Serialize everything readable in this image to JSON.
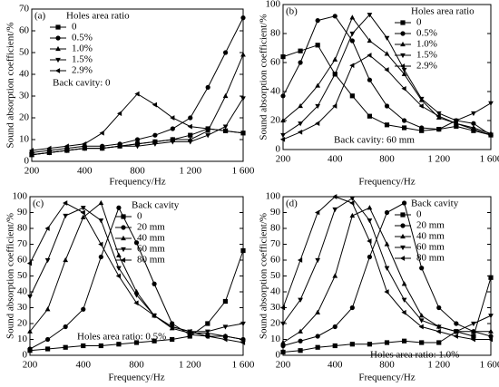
{
  "chart_data": [
    {
      "type": "line",
      "label": "(a)",
      "ylabel": "Sound absorption coefficient/%",
      "xlabel": "Frequency/Hz",
      "categories": [
        "200",
        null,
        null,
        "400",
        null,
        null,
        "800",
        null,
        null,
        "1 200",
        null,
        null,
        "1 600"
      ],
      "ylim": [
        0,
        70
      ],
      "yticks": [
        0,
        10,
        20,
        30,
        40,
        50,
        60,
        70
      ],
      "legend": "upper left",
      "legend_title": "Holes area ratio",
      "annotation": "Back cavity: 0",
      "series": [
        {
          "name": "0",
          "color": "#000000",
          "marker": "square",
          "values": [
            3,
            4,
            5,
            6,
            6,
            7,
            8,
            9,
            10,
            12,
            15,
            14,
            13
          ]
        },
        {
          "name": "0.5%",
          "color": "#000000",
          "marker": "circle",
          "values": [
            4,
            5,
            6,
            7,
            7,
            8,
            10,
            12,
            15,
            20,
            34,
            50,
            66
          ]
        },
        {
          "name": "1.0%",
          "color": "#000000",
          "marker": "triangle-up",
          "values": [
            3,
            4,
            5,
            6,
            6,
            7,
            8,
            9,
            10,
            10,
            14,
            30,
            49
          ]
        },
        {
          "name": "1.5%",
          "color": "#000000",
          "marker": "triangle-down",
          "values": [
            3,
            4,
            5,
            6,
            6,
            7,
            7,
            8,
            9,
            9,
            12,
            16,
            29
          ]
        },
        {
          "name": "2.9%",
          "color": "#000000",
          "marker": "triangle-left",
          "values": [
            5,
            6,
            7,
            8,
            13,
            22,
            31,
            26,
            20,
            16,
            15,
            14,
            13
          ]
        }
      ]
    },
    {
      "type": "line",
      "label": "(b)",
      "ylabel": "Sound absorption coefficient/%",
      "xlabel": "Frequency/Hz",
      "categories": [
        "200",
        null,
        null,
        "400",
        null,
        null,
        "800",
        null,
        null,
        "1 200",
        null,
        null,
        "1 600"
      ],
      "ylim": [
        0,
        100
      ],
      "yticks": [
        0,
        20,
        40,
        60,
        80,
        100
      ],
      "legend": "upper right",
      "legend_title": "Holes area ratio",
      "annotation": "Back cavity: 60 mm",
      "series": [
        {
          "name": "0",
          "color": "#000000",
          "marker": "square",
          "values": [
            64,
            68,
            72,
            52,
            37,
            23,
            17,
            15,
            13,
            14,
            16,
            13,
            10
          ]
        },
        {
          "name": "0.5%",
          "color": "#000000",
          "marker": "circle",
          "values": [
            37,
            60,
            89,
            92,
            75,
            48,
            30,
            20,
            15,
            14,
            20,
            18,
            10
          ]
        },
        {
          "name": "1.0%",
          "color": "#000000",
          "marker": "triangle-up",
          "values": [
            20,
            30,
            44,
            62,
            91,
            75,
            66,
            52,
            34,
            22,
            18,
            15,
            11
          ]
        },
        {
          "name": "1.5%",
          "color": "#000000",
          "marker": "triangle-down",
          "values": [
            10,
            18,
            30,
            52,
            80,
            93,
            77,
            55,
            35,
            25,
            20,
            25,
            32
          ]
        },
        {
          "name": "2.9%",
          "color": "#000000",
          "marker": "triangle-left",
          "values": [
            7,
            12,
            18,
            30,
            58,
            65,
            55,
            42,
            30,
            23,
            18,
            14,
            10
          ]
        }
      ]
    },
    {
      "type": "line",
      "label": "(c)",
      "ylabel": "Sound absorption coefficient/%",
      "xlabel": "Frequency/Hz",
      "categories": [
        "200",
        null,
        null,
        "400",
        null,
        null,
        "800",
        null,
        null,
        "1 200",
        null,
        null,
        "1 600"
      ],
      "ylim": [
        0,
        100
      ],
      "yticks": [
        0,
        10,
        20,
        30,
        40,
        50,
        60,
        70,
        80,
        90,
        100
      ],
      "legend": "upper center",
      "legend_title": "Back cavity",
      "annotation": "Holes area ratio: 0.5%",
      "series": [
        {
          "name": "0",
          "color": "#000000",
          "marker": "square",
          "values": [
            3,
            4,
            5,
            6,
            6,
            7,
            8,
            9,
            10,
            12,
            20,
            34,
            66
          ]
        },
        {
          "name": "20 mm",
          "color": "#000000",
          "marker": "circle",
          "values": [
            4,
            10,
            18,
            29,
            62,
            93,
            71,
            45,
            20,
            13,
            12,
            12,
            10
          ]
        },
        {
          "name": "40 mm",
          "color": "#000000",
          "marker": "triangle-up",
          "values": [
            15,
            29,
            60,
            87,
            96,
            63,
            40,
            25,
            17,
            14,
            14,
            12,
            10
          ]
        },
        {
          "name": "60 mm",
          "color": "#000000",
          "marker": "triangle-down",
          "values": [
            37,
            60,
            88,
            93,
            85,
            55,
            38,
            25,
            18,
            15,
            15,
            18,
            20
          ]
        },
        {
          "name": "80 mm",
          "color": "#000000",
          "marker": "triangle-left",
          "values": [
            58,
            80,
            96,
            90,
            70,
            50,
            33,
            25,
            18,
            15,
            12,
            10,
            8
          ]
        }
      ]
    },
    {
      "type": "line",
      "label": "(d)",
      "ylabel": "Sound absorption coefficient/%",
      "xlabel": "Frequency/Hz",
      "categories": [
        "200",
        null,
        null,
        "400",
        null,
        null,
        "800",
        null,
        null,
        "1 200",
        null,
        null,
        "1 600"
      ],
      "ylim": [
        0,
        100
      ],
      "yticks": [
        0,
        10,
        20,
        30,
        40,
        50,
        60,
        70,
        80,
        90,
        100
      ],
      "legend": "upper right",
      "legend_title": "Back cavity",
      "annotation": "Holes area ratio: 1.0%",
      "series": [
        {
          "name": "0",
          "color": "#000000",
          "marker": "square",
          "values": [
            2,
            3,
            5,
            6,
            7,
            7,
            8,
            9,
            8,
            8,
            15,
            12,
            49
          ]
        },
        {
          "name": "20 mm",
          "color": "#000000",
          "marker": "circle",
          "values": [
            6,
            9,
            12,
            18,
            30,
            62,
            90,
            96,
            55,
            30,
            20,
            15,
            12
          ]
        },
        {
          "name": "40 mm",
          "color": "#000000",
          "marker": "triangle-up",
          "values": [
            8,
            15,
            27,
            50,
            88,
            93,
            70,
            45,
            25,
            18,
            15,
            15,
            15
          ]
        },
        {
          "name": "60 mm",
          "color": "#000000",
          "marker": "triangle-down",
          "values": [
            20,
            35,
            60,
            92,
            99,
            85,
            55,
            35,
            22,
            18,
            15,
            20,
            25
          ]
        },
        {
          "name": "80 mm",
          "color": "#000000",
          "marker": "triangle-left",
          "values": [
            30,
            60,
            90,
            100,
            96,
            72,
            40,
            27,
            18,
            15,
            12,
            10,
            10
          ]
        }
      ]
    }
  ]
}
